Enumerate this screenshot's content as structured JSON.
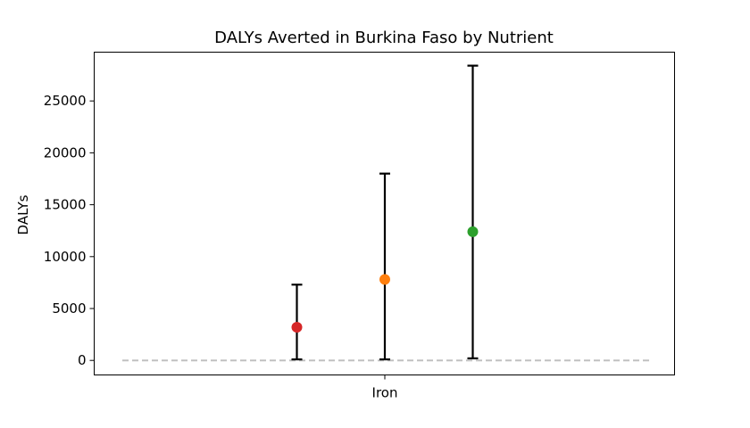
{
  "chart_data": {
    "type": "scatter",
    "title": "DALYs Averted in Burkina Faso by Nutrient",
    "xlabel": "",
    "ylabel": "DALYs",
    "categories": [
      "Iron"
    ],
    "ylim": [
      -1400,
      29700
    ],
    "yticks": [
      0,
      5000,
      10000,
      15000,
      20000,
      25000
    ],
    "ytick_labels": [
      "0",
      "5000",
      "10000",
      "15000",
      "20000",
      "25000"
    ],
    "xtick_labels": [
      "Iron"
    ],
    "grid": false,
    "legend": false,
    "reference_line": {
      "y": 0,
      "style": "dashed",
      "color": "#c0c0c0"
    },
    "series": [
      {
        "category": "Iron",
        "offset": -1,
        "value": 3200,
        "lower": 100,
        "upper": 7300,
        "color": "#d62728"
      },
      {
        "category": "Iron",
        "offset": 0,
        "value": 7800,
        "lower": 100,
        "upper": 18000,
        "color": "#ff7f0e"
      },
      {
        "category": "Iron",
        "offset": 1,
        "value": 12400,
        "lower": 200,
        "upper": 28400,
        "color": "#2ca02c"
      }
    ]
  }
}
